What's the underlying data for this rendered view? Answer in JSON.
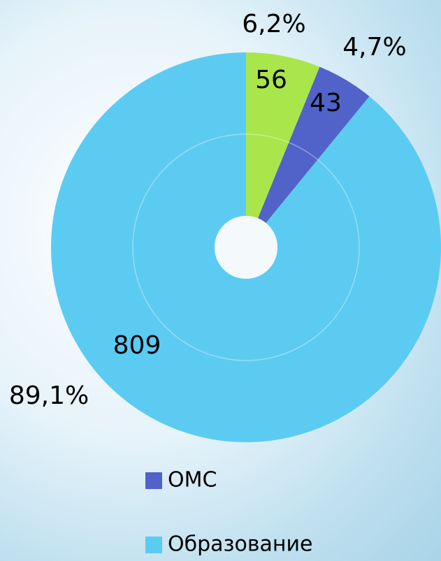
{
  "chart_data": {
    "type": "donut",
    "categories": [
      null,
      "ОМС",
      "Образование"
    ],
    "values": [
      56,
      43,
      809
    ],
    "percent_labels": [
      "6,2%",
      "4,7%",
      "89,1%"
    ],
    "colors": [
      "#a8e64c",
      "#5163c8",
      "#5ccbf2"
    ]
  }
}
